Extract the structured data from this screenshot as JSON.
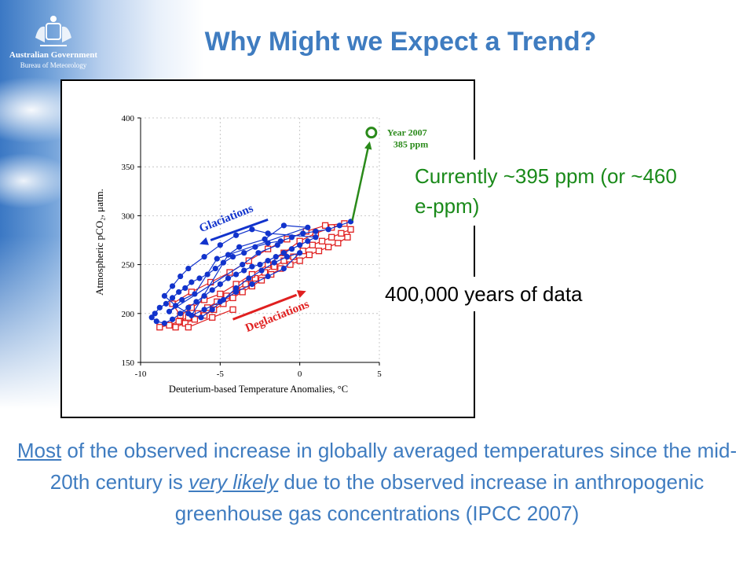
{
  "header": {
    "title": "Why Might we Expect a Trend?",
    "gov_name": "Australian Government",
    "gov_dept": "Bureau of Meteorology"
  },
  "callouts": {
    "current": "Currently ~395 ppm (or ~460 e-ppm)",
    "years": "400,000 years of data"
  },
  "statement": {
    "part1": "Most",
    "part2": " of the observed increase in globally averaged temperatures since the mid-20th century is ",
    "part3": "very likely",
    "part4": " due to the observed increase in anthropogenic greenhouse gas concentrations (IPCC 2007)"
  },
  "chart_data": {
    "type": "scatter",
    "xlabel": "Deuterium-based Temperature Anomalies, °C",
    "ylabel": "Atmospheric pCO₂, μatm.",
    "xlim": [
      -10,
      5
    ],
    "ylim": [
      150,
      400
    ],
    "x_ticks": [
      "-10",
      "-5",
      "0",
      "5"
    ],
    "y_ticks": [
      "400",
      "350",
      "300",
      "250",
      "200",
      "150"
    ],
    "annotations": {
      "glaciations": "Glaciations",
      "deglaciations": "Deglaciations",
      "year_label": "Year 2007",
      "ppm_label": "385 ppm"
    },
    "colors": {
      "glaciation": "#1133cc",
      "deglaciation": "#e02020",
      "current": "#2a8a1a"
    },
    "current_point": {
      "x": 4.5,
      "y": 385
    },
    "series": [
      {
        "name": "Glaciations",
        "points": [
          [
            3.2,
            294
          ],
          [
            2.5,
            290
          ],
          [
            1.8,
            286
          ],
          [
            1,
            284
          ],
          [
            0.2,
            282
          ],
          [
            -0.5,
            278
          ],
          [
            -1.2,
            274
          ],
          [
            -2,
            272
          ],
          [
            -2.8,
            268
          ],
          [
            -3.5,
            262
          ],
          [
            -4.2,
            258
          ],
          [
            -4.8,
            252
          ],
          [
            -5.3,
            246
          ],
          [
            -5.8,
            240
          ],
          [
            -6.3,
            236
          ],
          [
            -6.8,
            232
          ],
          [
            -7.2,
            226
          ],
          [
            -7.6,
            222
          ],
          [
            -8,
            216
          ],
          [
            -8.4,
            210
          ],
          [
            -8.8,
            206
          ],
          [
            -9.1,
            200
          ],
          [
            -9.3,
            196
          ],
          [
            -9,
            192
          ],
          [
            -8.5,
            190
          ],
          [
            -8,
            194
          ],
          [
            -7.5,
            200
          ],
          [
            -7,
            206
          ],
          [
            -6.5,
            212
          ],
          [
            -6,
            218
          ],
          [
            -5.5,
            224
          ],
          [
            -5,
            230
          ],
          [
            -4.5,
            236
          ],
          [
            -4,
            240
          ],
          [
            -3.5,
            244
          ],
          [
            -3,
            248
          ],
          [
            -2.5,
            250
          ],
          [
            -2,
            254
          ],
          [
            -1.5,
            258
          ],
          [
            -1,
            262
          ],
          [
            -0.5,
            266
          ],
          [
            0,
            270
          ],
          [
            0.5,
            274
          ],
          [
            1,
            278
          ],
          [
            -2,
            282
          ],
          [
            -3,
            286
          ],
          [
            -4,
            280
          ],
          [
            -5,
            270
          ],
          [
            -6,
            258
          ],
          [
            -7,
            246
          ],
          [
            -7.5,
            238
          ],
          [
            -8,
            228
          ],
          [
            -8.5,
            218
          ],
          [
            -7.8,
            208
          ],
          [
            -7,
            200
          ],
          [
            -6.2,
            196
          ],
          [
            -5.5,
            204
          ],
          [
            -4.8,
            214
          ],
          [
            -4,
            226
          ],
          [
            -3.2,
            236
          ],
          [
            -2.4,
            244
          ],
          [
            -1.6,
            252
          ],
          [
            -0.8,
            258
          ],
          [
            0,
            262
          ],
          [
            -1,
            246
          ],
          [
            -2,
            238
          ],
          [
            -3,
            230
          ],
          [
            -4,
            222
          ],
          [
            -5,
            212
          ],
          [
            -6,
            204
          ],
          [
            -6.8,
            198
          ],
          [
            -4.5,
            260
          ],
          [
            -3.8,
            268
          ],
          [
            -2.2,
            276
          ],
          [
            -1,
            290
          ],
          [
            0.5,
            288
          ],
          [
            -5.2,
            256
          ],
          [
            -6.6,
            220
          ],
          [
            -7.4,
            214
          ],
          [
            -8.2,
            202
          ],
          [
            -3.6,
            250
          ],
          [
            -2.6,
            262
          ],
          [
            -1.4,
            270
          ]
        ]
      },
      {
        "name": "Deglaciations",
        "points": [
          [
            -8.8,
            186
          ],
          [
            -8.2,
            188
          ],
          [
            -7.6,
            192
          ],
          [
            -7,
            196
          ],
          [
            -6.4,
            200
          ],
          [
            -5.8,
            206
          ],
          [
            -5.2,
            212
          ],
          [
            -4.6,
            218
          ],
          [
            -4,
            224
          ],
          [
            -3.4,
            230
          ],
          [
            -2.8,
            236
          ],
          [
            -2.2,
            242
          ],
          [
            -1.6,
            248
          ],
          [
            -1,
            254
          ],
          [
            -0.4,
            258
          ],
          [
            0.2,
            264
          ],
          [
            0.8,
            270
          ],
          [
            1.4,
            274
          ],
          [
            2,
            278
          ],
          [
            2.6,
            282
          ],
          [
            3.2,
            286
          ],
          [
            3,
            278
          ],
          [
            2.4,
            272
          ],
          [
            1.8,
            268
          ],
          [
            1.2,
            264
          ],
          [
            0.6,
            260
          ],
          [
            0,
            254
          ],
          [
            -0.6,
            250
          ],
          [
            -1.2,
            246
          ],
          [
            -1.8,
            240
          ],
          [
            -2.4,
            234
          ],
          [
            -3,
            228
          ],
          [
            -3.6,
            222
          ],
          [
            -4.2,
            216
          ],
          [
            -4.8,
            210
          ],
          [
            -5.4,
            204
          ],
          [
            -6,
            198
          ],
          [
            -6.6,
            194
          ],
          [
            -7.2,
            190
          ],
          [
            -7.8,
            186
          ],
          [
            -7.5,
            198
          ],
          [
            -6.8,
            206
          ],
          [
            -6,
            214
          ],
          [
            -5,
            220
          ],
          [
            -4,
            230
          ],
          [
            -3,
            240
          ],
          [
            -2,
            250
          ],
          [
            -1,
            262
          ],
          [
            0,
            274
          ],
          [
            1,
            282
          ],
          [
            2,
            288
          ],
          [
            2.8,
            292
          ],
          [
            1.6,
            290
          ],
          [
            0.4,
            284
          ],
          [
            -0.8,
            276
          ],
          [
            -2,
            266
          ],
          [
            -3.2,
            254
          ],
          [
            -4.4,
            242
          ],
          [
            -5.6,
            232
          ],
          [
            -6.8,
            222
          ],
          [
            -8,
            210
          ],
          [
            -7,
            186
          ],
          [
            -5.5,
            196
          ],
          [
            -4.2,
            204
          ]
        ]
      }
    ]
  }
}
